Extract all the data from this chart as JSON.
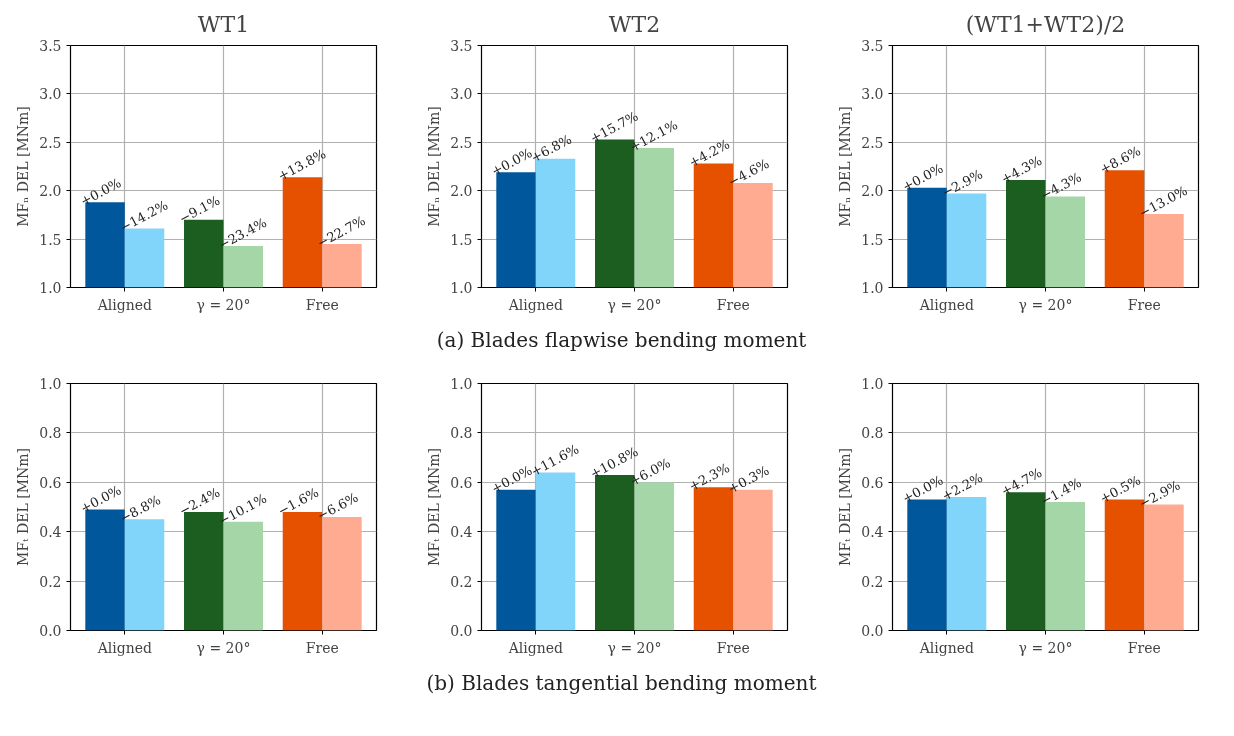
{
  "chart_data": [
    {
      "type": "bar",
      "title": "WT1",
      "ylabel": "MFₙ DEL [MNm]",
      "categories": [
        "Aligned",
        "γ = 20°",
        "Free"
      ],
      "ylim": [
        1.0,
        3.5
      ],
      "yticks": [
        {
          "value": 1.0,
          "label": "1.0"
        },
        {
          "value": 1.5,
          "label": "1.5"
        },
        {
          "value": 2.0,
          "label": "2.0"
        },
        {
          "value": 2.5,
          "label": "2.5"
        },
        {
          "value": 3.0,
          "label": "3.0"
        },
        {
          "value": 3.5,
          "label": "3.5"
        }
      ],
      "grid": true,
      "series": [
        {
          "colors": [
            "#01579b",
            "#1b5e20",
            "#e65100"
          ],
          "values": [
            1.88,
            1.7,
            2.14
          ]
        },
        {
          "colors": [
            "#81d4fa",
            "#a5d6a7",
            "#ffab91"
          ],
          "values": [
            1.61,
            1.43,
            1.45
          ]
        }
      ],
      "annotations": [
        {
          "text": "+0.0%",
          "x": "Aligned",
          "y": 1.88
        },
        {
          "text": "−9.1%",
          "x": "γ = 20°",
          "y": 1.7
        },
        {
          "text": "+13.8%",
          "x": "Free",
          "y": 2.14
        },
        {
          "text": "−14.2%",
          "x": "Aligned",
          "y": 1.61
        },
        {
          "text": "−23.4%",
          "x": "γ = 20°",
          "y": 1.43
        },
        {
          "text": "−22.7%",
          "x": "Free",
          "y": 1.45
        }
      ]
    },
    {
      "type": "bar",
      "title": "WT2",
      "ylabel": "MFₙ DEL [MNm]",
      "categories": [
        "Aligned",
        "γ = 20°",
        "Free"
      ],
      "ylim": [
        1.0,
        3.5
      ],
      "yticks": [
        {
          "value": 1.0,
          "label": "1.0"
        },
        {
          "value": 1.5,
          "label": "1.5"
        },
        {
          "value": 2.0,
          "label": "2.0"
        },
        {
          "value": 2.5,
          "label": "2.5"
        },
        {
          "value": 3.0,
          "label": "3.0"
        },
        {
          "value": 3.5,
          "label": "3.5"
        }
      ],
      "grid": true,
      "series": [
        {
          "colors": [
            "#01579b",
            "#1b5e20",
            "#e65100"
          ],
          "values": [
            2.19,
            2.53,
            2.28
          ]
        },
        {
          "colors": [
            "#81d4fa",
            "#a5d6a7",
            "#ffab91"
          ],
          "values": [
            2.33,
            2.44,
            2.08
          ]
        }
      ],
      "annotations": [
        {
          "text": "+0.0%",
          "x": "Aligned",
          "y": 2.19
        },
        {
          "text": "+15.7%",
          "x": "γ = 20°",
          "y": 2.53
        },
        {
          "text": "+4.2%",
          "x": "Free",
          "y": 2.28
        },
        {
          "text": "+6.8%",
          "x": "Aligned",
          "y": 2.33
        },
        {
          "text": "+12.1%",
          "x": "γ = 20°",
          "y": 2.44
        },
        {
          "text": "−4.6%",
          "x": "Free",
          "y": 2.08
        },
        "(a) Blades flapwise bending moment"
      ]
    },
    {
      "type": "bar",
      "title": "(WT1+WT2)/2",
      "ylabel": "MFₙ DEL [MNm]",
      "categories": [
        "Aligned",
        "γ = 20°",
        "Free"
      ],
      "ylim": [
        1.0,
        3.5
      ],
      "yticks": [
        {
          "value": 1.0,
          "label": "1.0"
        },
        {
          "value": 1.5,
          "label": "1.5"
        },
        {
          "value": 2.0,
          "label": "2.0"
        },
        {
          "value": 2.5,
          "label": "2.5"
        },
        {
          "value": 3.0,
          "label": "3.0"
        },
        {
          "value": 3.5,
          "label": "3.5"
        }
      ],
      "grid": true,
      "series": [
        {
          "colors": [
            "#01579b",
            "#1b5e20",
            "#e65100"
          ],
          "values": [
            2.03,
            2.11,
            2.21
          ]
        },
        {
          "colors": [
            "#81d4fa",
            "#a5d6a7",
            "#ffab91"
          ],
          "values": [
            1.97,
            1.94,
            1.76
          ]
        }
      ],
      "annotations": [
        {
          "text": "+0.0%",
          "x": "Aligned",
          "y": 2.03
        },
        {
          "text": "+4.3%",
          "x": "γ = 20°",
          "y": 2.11
        },
        {
          "text": "+8.6%",
          "x": "Free",
          "y": 2.21
        },
        {
          "text": "−2.9%",
          "x": "Aligned",
          "y": 1.97
        },
        {
          "text": "−4.3%",
          "x": "γ = 20°",
          "y": 1.94
        },
        {
          "text": "−13.0%",
          "x": "Free",
          "y": 1.76
        }
      ]
    },
    {
      "type": "bar",
      "ylabel": "MFₜ DEL [MNm]",
      "categories": [
        "Aligned",
        "γ = 20°",
        "Free"
      ],
      "ylim": [
        0.0,
        1.0
      ],
      "yticks": [
        {
          "value": 0.0,
          "label": "0.0"
        },
        0.2,
        0.4,
        0.6,
        0.8,
        {
          "value": 1.0,
          "label": "1.0"
        }
      ],
      "grid": true,
      "series": [
        {
          "colors": [
            "#01579b",
            "#1b5e20",
            "#e65100"
          ],
          "values": [
            0.49,
            0.48,
            0.48
          ]
        },
        {
          "colors": [
            "#81d4fa",
            "#a5d6a7",
            "#ffab91"
          ],
          "values": [
            0.45,
            0.44,
            0.46
          ]
        }
      ],
      "annotations": [
        {
          "text": "+0.0%",
          "x": "Aligned",
          "y": 0.49
        },
        {
          "text": "−2.4%",
          "x": "γ = 20°",
          "y": 0.48
        },
        {
          "text": "−1.6%",
          "x": "Free",
          "y": 0.48
        },
        {
          "text": "−8.8%",
          "x": "Aligned",
          "y": 0.45
        },
        {
          "text": "−10.1%",
          "x": "γ = 20°",
          "y": 0.44
        },
        {
          "text": "−6.6%",
          "x": "Free",
          "y": 0.46
        }
      ]
    },
    {
      "type": "bar",
      "ylabel": "MFₜ DEL [MNm]",
      "categories": [
        "Aligned",
        "γ = 20°",
        "Free"
      ],
      "ylim": [
        0.0,
        1.0
      ],
      "yticks": [
        {
          "value": 0.0,
          "label": "0.0"
        },
        0.2,
        0.4,
        0.6,
        0.8,
        {
          "value": 1.0,
          "label": "1.0"
        }
      ],
      "grid": true,
      "series": [
        {
          "colors": [
            "#01579b",
            "#1b5e20",
            "#e65100"
          ],
          "values": [
            0.57,
            0.63,
            0.58
          ]
        },
        {
          "colors": [
            "#81d4fa",
            "#a5d6a7",
            "#ffab91"
          ],
          "values": [
            0.64,
            0.6,
            0.57
          ]
        }
      ],
      "annotations": [
        {
          "text": "+0.0%",
          "x": "Aligned",
          "y": 0.57
        },
        {
          "text": "+10.8%",
          "x": "γ = 20°",
          "y": 0.63
        },
        {
          "text": "+2.3%",
          "x": "Free",
          "y": 0.58
        },
        {
          "text": "+11.6%",
          "x": "Aligned",
          "y": 0.64
        },
        {
          "text": "+6.0%",
          "x": "γ = 20°",
          "y": 0.6
        },
        {
          "text": "+0.3%",
          "x": "Free",
          "y": 0.57
        },
        "(b) Blades tangential bending moment"
      ]
    },
    {
      "type": "bar",
      "ylabel": "MFₜ DEL [MNm]",
      "categories": [
        "Aligned",
        "γ = 20°",
        "Free"
      ],
      "ylim": [
        0.0,
        1.0
      ],
      "yticks": [
        {
          "value": 0.0,
          "label": "0.0"
        },
        0.2,
        0.4,
        0.6,
        0.8,
        {
          "value": 1.0,
          "label": "1.0"
        }
      ],
      "grid": true,
      "series": [
        {
          "colors": [
            "#01579b",
            "#1b5e20",
            "#e65100"
          ],
          "values": [
            0.53,
            0.56,
            0.53
          ]
        },
        {
          "colors": [
            "#81d4fa",
            "#a5d6a7",
            "#ffab91"
          ],
          "values": [
            0.54,
            0.52,
            0.51
          ]
        }
      ],
      "annotations": [
        {
          "text": "+0.0%",
          "x": "Aligned",
          "y": 0.53
        },
        {
          "text": "+4.7%",
          "x": "γ = 20°",
          "y": 0.56
        },
        {
          "text": "+0.5%",
          "x": "Free",
          "y": 0.53
        },
        {
          "text": "+2.2%",
          "x": "Aligned",
          "y": 0.54
        },
        {
          "text": "−1.4%",
          "x": "γ = 20°",
          "y": 0.52
        },
        {
          "text": "−2.9%",
          "x": "Free",
          "y": 0.51
        }
      ]
    }
  ]
}
